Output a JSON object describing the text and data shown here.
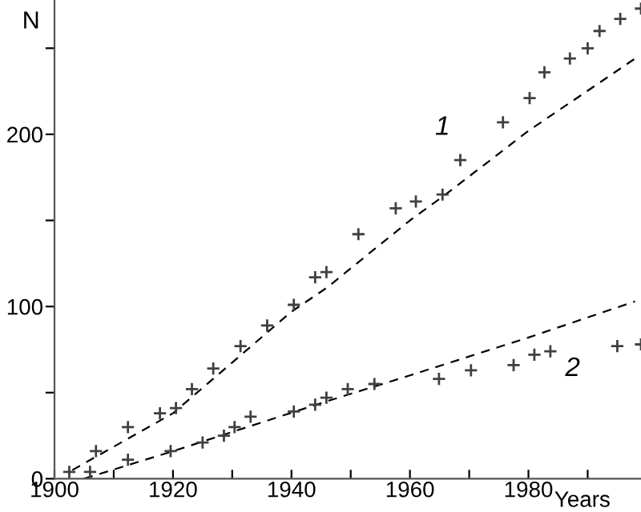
{
  "chart_data": {
    "type": "scatter",
    "xlabel": "Years",
    "ylabel": "N",
    "xlim": [
      1900,
      1999
    ],
    "ylim": [
      0,
      278
    ],
    "xticks": [
      1900,
      {
        "value": 1910,
        "label": null
      },
      1920,
      {
        "value": 1930,
        "label": null
      },
      1940,
      {
        "value": 1950,
        "label": null
      },
      1960,
      {
        "value": 1970,
        "label": null
      },
      1980,
      {
        "value": 1990,
        "label": null
      }
    ],
    "yticks": [
      0,
      {
        "value": 50,
        "label": null
      },
      100,
      {
        "value": 150,
        "label": null
      },
      200,
      {
        "value": 250,
        "label": null
      }
    ],
    "grid": false,
    "legend": false,
    "series": [
      {
        "color": "#404040",
        "marker": "cross",
        "x": [
          1902.5,
          1907,
          1912.4,
          1917.8,
          1920.5,
          1923.2,
          1926.8,
          1931.4,
          1935.9,
          1940.4,
          1944,
          1945.9,
          1951.3,
          1957.6,
          1961,
          1965.5,
          1968.5,
          1975.7,
          1980.2,
          1982.7,
          1987,
          1990,
          1992,
          1995.5,
          1999
        ],
        "values": [
          4,
          16,
          30,
          38,
          41,
          52,
          64,
          77,
          89,
          101,
          117,
          120,
          142,
          157,
          161,
          165,
          185,
          207,
          221,
          236,
          244,
          250,
          260,
          267,
          273
        ]
      },
      {
        "color": "#404040",
        "marker": "cross",
        "x": [
          1906,
          1912.4,
          1919.6,
          1925,
          1928.6,
          1930.4,
          1933.1,
          1940.4,
          1944,
          1945.9,
          1949.5,
          1954,
          1964.9,
          1970.3,
          1977.5,
          1981,
          1983.7,
          1995,
          1999
        ],
        "values": [
          4,
          11,
          16,
          21,
          25,
          30,
          36,
          39,
          43,
          47,
          52,
          55,
          58,
          63,
          66,
          72,
          74,
          77,
          78
        ]
      },
      {
        "type": "line",
        "line_style": "dashed",
        "color": "#000000",
        "x": [
          1903,
          1920,
          1940,
          1946,
          1960,
          1966,
          1980,
          1998
        ],
        "values": [
          5,
          38,
          97,
          111,
          150,
          165,
          202,
          244
        ]
      },
      {
        "type": "line",
        "line_style": "dashed",
        "color": "#000000",
        "x": [
          1905,
          1920,
          1946,
          1960,
          1980,
          1998
        ],
        "values": [
          0,
          16,
          45,
          60,
          82,
          103
        ]
      }
    ],
    "annotations": [
      "1",
      "2"
    ]
  }
}
